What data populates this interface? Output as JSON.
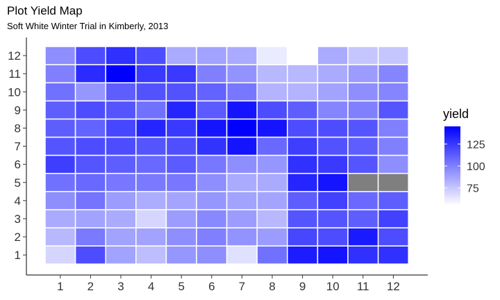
{
  "chart_data": {
    "type": "heatmap",
    "title": "Plot Yield Map",
    "subtitle": "Soft White Winter Trial in Kimberly, 2013",
    "x": [
      1,
      2,
      3,
      4,
      5,
      6,
      7,
      8,
      9,
      10,
      11,
      12
    ],
    "y": [
      1,
      2,
      3,
      4,
      5,
      6,
      7,
      8,
      9,
      10,
      11,
      12
    ],
    "legend": {
      "title": "yield",
      "ticks": [
        75,
        100,
        125
      ],
      "range": [
        55,
        145
      ],
      "position": "right",
      "low_color": "#ffffff",
      "high_color": "#0000ff",
      "na_color": "#7f7f7f"
    },
    "grid": false,
    "values": [
      [
        70,
        118,
        88,
        78,
        92,
        95,
        66,
        105,
        135,
        138,
        128,
        128
      ],
      [
        80,
        102,
        88,
        88,
        95,
        100,
        93,
        90,
        120,
        118,
        136,
        118
      ],
      [
        85,
        88,
        85,
        70,
        90,
        97,
        90,
        80,
        115,
        115,
        112,
        122
      ],
      [
        95,
        104,
        90,
        84,
        87,
        92,
        88,
        87,
        112,
        122,
        108,
        112
      ],
      [
        105,
        108,
        103,
        102,
        103,
        95,
        85,
        85,
        132,
        138,
        null,
        null
      ],
      [
        123,
        115,
        112,
        108,
        113,
        103,
        95,
        92,
        128,
        125,
        115,
        95
      ],
      [
        115,
        118,
        118,
        115,
        117,
        127,
        138,
        108,
        123,
        116,
        112,
        100
      ],
      [
        112,
        110,
        120,
        132,
        125,
        138,
        147,
        138,
        118,
        118,
        115,
        100
      ],
      [
        112,
        118,
        115,
        105,
        132,
        113,
        138,
        118,
        112,
        98,
        100,
        115
      ],
      [
        105,
        92,
        112,
        116,
        116,
        110,
        103,
        82,
        82,
        88,
        95,
        98
      ],
      [
        100,
        130,
        145,
        125,
        125,
        100,
        93,
        80,
        80,
        85,
        90,
        98
      ],
      [
        95,
        118,
        128,
        118,
        85,
        88,
        85,
        62,
        null,
        85,
        75,
        75
      ]
    ]
  }
}
